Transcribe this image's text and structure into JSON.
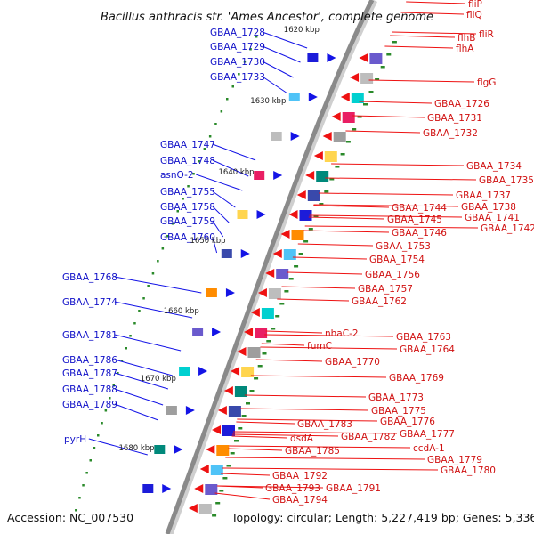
{
  "title": "Bacillus anthracis str. 'Ames Ancestor', complete genome",
  "footer": {
    "accession": "Accession: NC_007530",
    "summary": "Topology: circular; Length: 5,227,419 bp; Genes: 5,336"
  },
  "colors": {
    "forward_gene": "#1414e6",
    "reverse_gene": "#ee1111",
    "forward_label": "#1010c8",
    "reverse_label": "#d01010",
    "backbone": "#888888",
    "tick_dot": "#2a8a2a"
  },
  "kbp_markers": [
    "1620 kbp",
    "1630 kbp",
    "1640 kbp",
    "1650 kbp",
    "1660 kbp",
    "1670 kbp",
    "1680 kbp"
  ],
  "left_labels": [
    "GBAA_1728",
    "GBAA_1729",
    "GBAA_1730",
    "GBAA_1733",
    "GBAA_1747",
    "GBAA_1748",
    "asnO-2",
    "GBAA_1755",
    "GBAA_1758",
    "GBAA_1759",
    "GBAA_1760",
    "GBAA_1768",
    "GBAA_1774",
    "GBAA_1781",
    "GBAA_1786",
    "GBAA_1787",
    "GBAA_1788",
    "GBAA_1789",
    "pyrH"
  ],
  "right_labels": [
    "fliP",
    "fliQ",
    "fliR",
    "flhB",
    "flhA",
    "flgG",
    "GBAA_1726",
    "GBAA_1731",
    "GBAA_1732",
    "GBAA_1734",
    "GBAA_1735",
    "GBAA_1737",
    "GBAA_1738",
    "GBAA_1741",
    "GBAA_1742",
    "GBAA_1744",
    "GBAA_1745",
    "GBAA_1746",
    "GBAA_1753",
    "GBAA_1754",
    "GBAA_1756",
    "GBAA_1757",
    "GBAA_1762",
    "nhaC-2",
    "fumC",
    "GBAA_1763",
    "GBAA_1764",
    "GBAA_1770",
    "GBAA_1769",
    "GBAA_1773",
    "GBAA_1775",
    "GBAA_1776",
    "GBAA_1777",
    "ccdA-1",
    "GBAA_1779",
    "GBAA_1780",
    "GBAA_1783",
    "GBAA_1782",
    "dsdA",
    "GBAA_1785",
    "GBAA_1792",
    "GBAA_1793",
    "GBAA_1791",
    "GBAA_1794"
  ]
}
